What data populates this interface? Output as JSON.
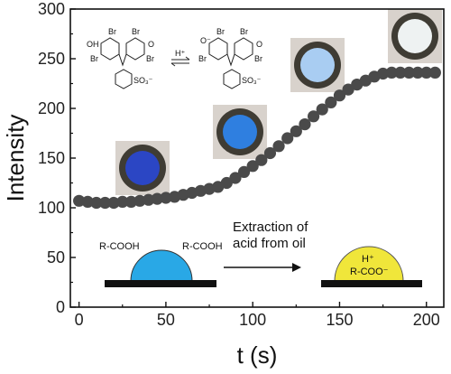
{
  "chart_data": {
    "type": "scatter",
    "xlabel": "t (s)",
    "ylabel": "Intensity",
    "xlim": [
      -5,
      210
    ],
    "ylim": [
      0,
      300
    ],
    "xticks": [
      "0",
      "50",
      "100",
      "150",
      "200"
    ],
    "yticks": [
      "0",
      "50",
      "100",
      "150",
      "200",
      "250",
      "300"
    ],
    "grid": false,
    "series": [
      {
        "color": "#4a4a4a",
        "x": [
          0,
          5,
          10,
          15,
          20,
          25,
          30,
          35,
          40,
          45,
          50,
          55,
          60,
          65,
          70,
          75,
          80,
          85,
          90,
          95,
          100,
          105,
          110,
          115,
          120,
          125,
          130,
          135,
          140,
          145,
          150,
          155,
          160,
          165,
          170,
          175,
          180,
          185,
          190,
          195,
          200,
          205
        ],
        "y": [
          107,
          106,
          105,
          105,
          105,
          106,
          106,
          107,
          108,
          109,
          110,
          111,
          113,
          115,
          117,
          119,
          121,
          125,
          130,
          136,
          142,
          148,
          155,
          162,
          170,
          177,
          184,
          192,
          199,
          206,
          213,
          219,
          224,
          228,
          232,
          235,
          236,
          236,
          236,
          236,
          236,
          236
        ]
      }
    ],
    "annotations": {
      "before_label_left": "R-COOH",
      "before_label_right": "R-COOH",
      "arrow_text_line1": "Extraction of",
      "arrow_text_line2": "acid from oil",
      "after_label_line1": "H⁺",
      "after_label_line2": "R-COO⁻",
      "equilibrium_label": "H⁺",
      "sulfonate_label": "SO₃⁻",
      "hydroxyl_label": "OH",
      "oxide_label": "O⁻",
      "bromine_label": "Br",
      "carbonyl_label": "O"
    },
    "colors": {
      "marker": "#4a4a4a",
      "drop_before": "#29a8e6",
      "drop_after": "#f0e63a",
      "substrate": "#111111"
    }
  }
}
